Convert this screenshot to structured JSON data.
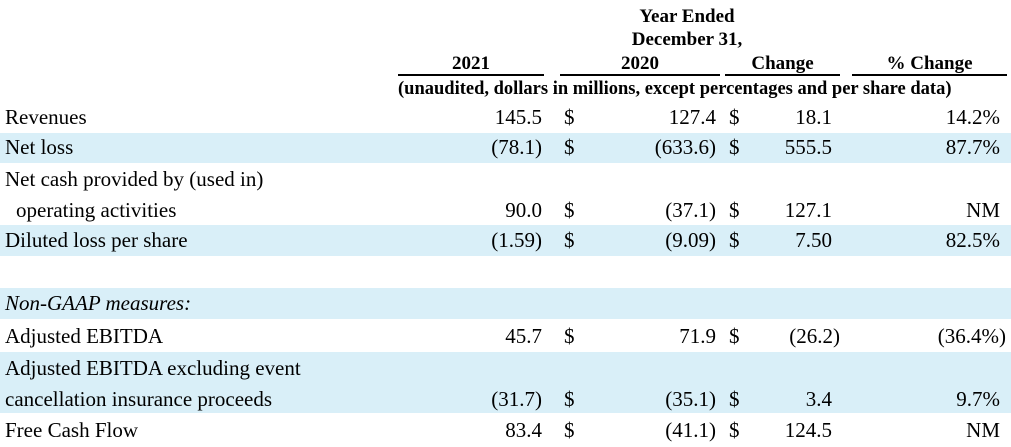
{
  "header": {
    "year_ended_line1": "Year Ended",
    "year_ended_line2": "December 31,",
    "col_2021": "2021",
    "col_2020": "2020",
    "col_change": "Change",
    "col_pct_change": "% Change",
    "units_note": "(unaudited, dollars in millions, except percentages and per share data)"
  },
  "rows": [
    {
      "label": "Revenues",
      "v2021": "145.5",
      "cur1": "$",
      "v2020": "127.4",
      "cur2": "$",
      "change": "18.1",
      "pct": "14.2%"
    },
    {
      "label": "Net loss",
      "v2021": "(78.1)",
      "cur1": "$",
      "v2020": "(633.6)",
      "cur2": "$",
      "change": "555.5",
      "pct": "87.7%"
    },
    {
      "label_line1": "Net cash provided by (used in)",
      "label_line2": "operating activities",
      "v2021": "90.0",
      "cur1": "$",
      "v2020": "(37.1)",
      "cur2": "$",
      "change": "127.1",
      "pct": "NM"
    },
    {
      "label": "Diluted loss per share",
      "v2021": "(1.59)",
      "cur1": "$",
      "v2020": "(9.09)",
      "cur2": "$",
      "change": "7.50",
      "pct": "82.5%"
    },
    {
      "label": "Non-GAAP measures:"
    },
    {
      "label": "Adjusted EBITDA",
      "v2021": "45.7",
      "cur1": "$",
      "v2020": "71.9",
      "cur2": "$",
      "change": "(26.2)",
      "pct": "(36.4%)"
    },
    {
      "label_line1": "Adjusted EBITDA excluding event",
      "label_line2": "cancellation insurance proceeds",
      "v2021": "(31.7)",
      "cur1": "$",
      "v2020": "(35.1)",
      "cur2": "$",
      "change": "3.4",
      "pct": "9.7%"
    },
    {
      "label": "Free Cash Flow",
      "v2021": "83.4",
      "cur1": "$",
      "v2020": "(41.1)",
      "cur2": "$",
      "change": "124.5",
      "pct": "NM"
    }
  ]
}
